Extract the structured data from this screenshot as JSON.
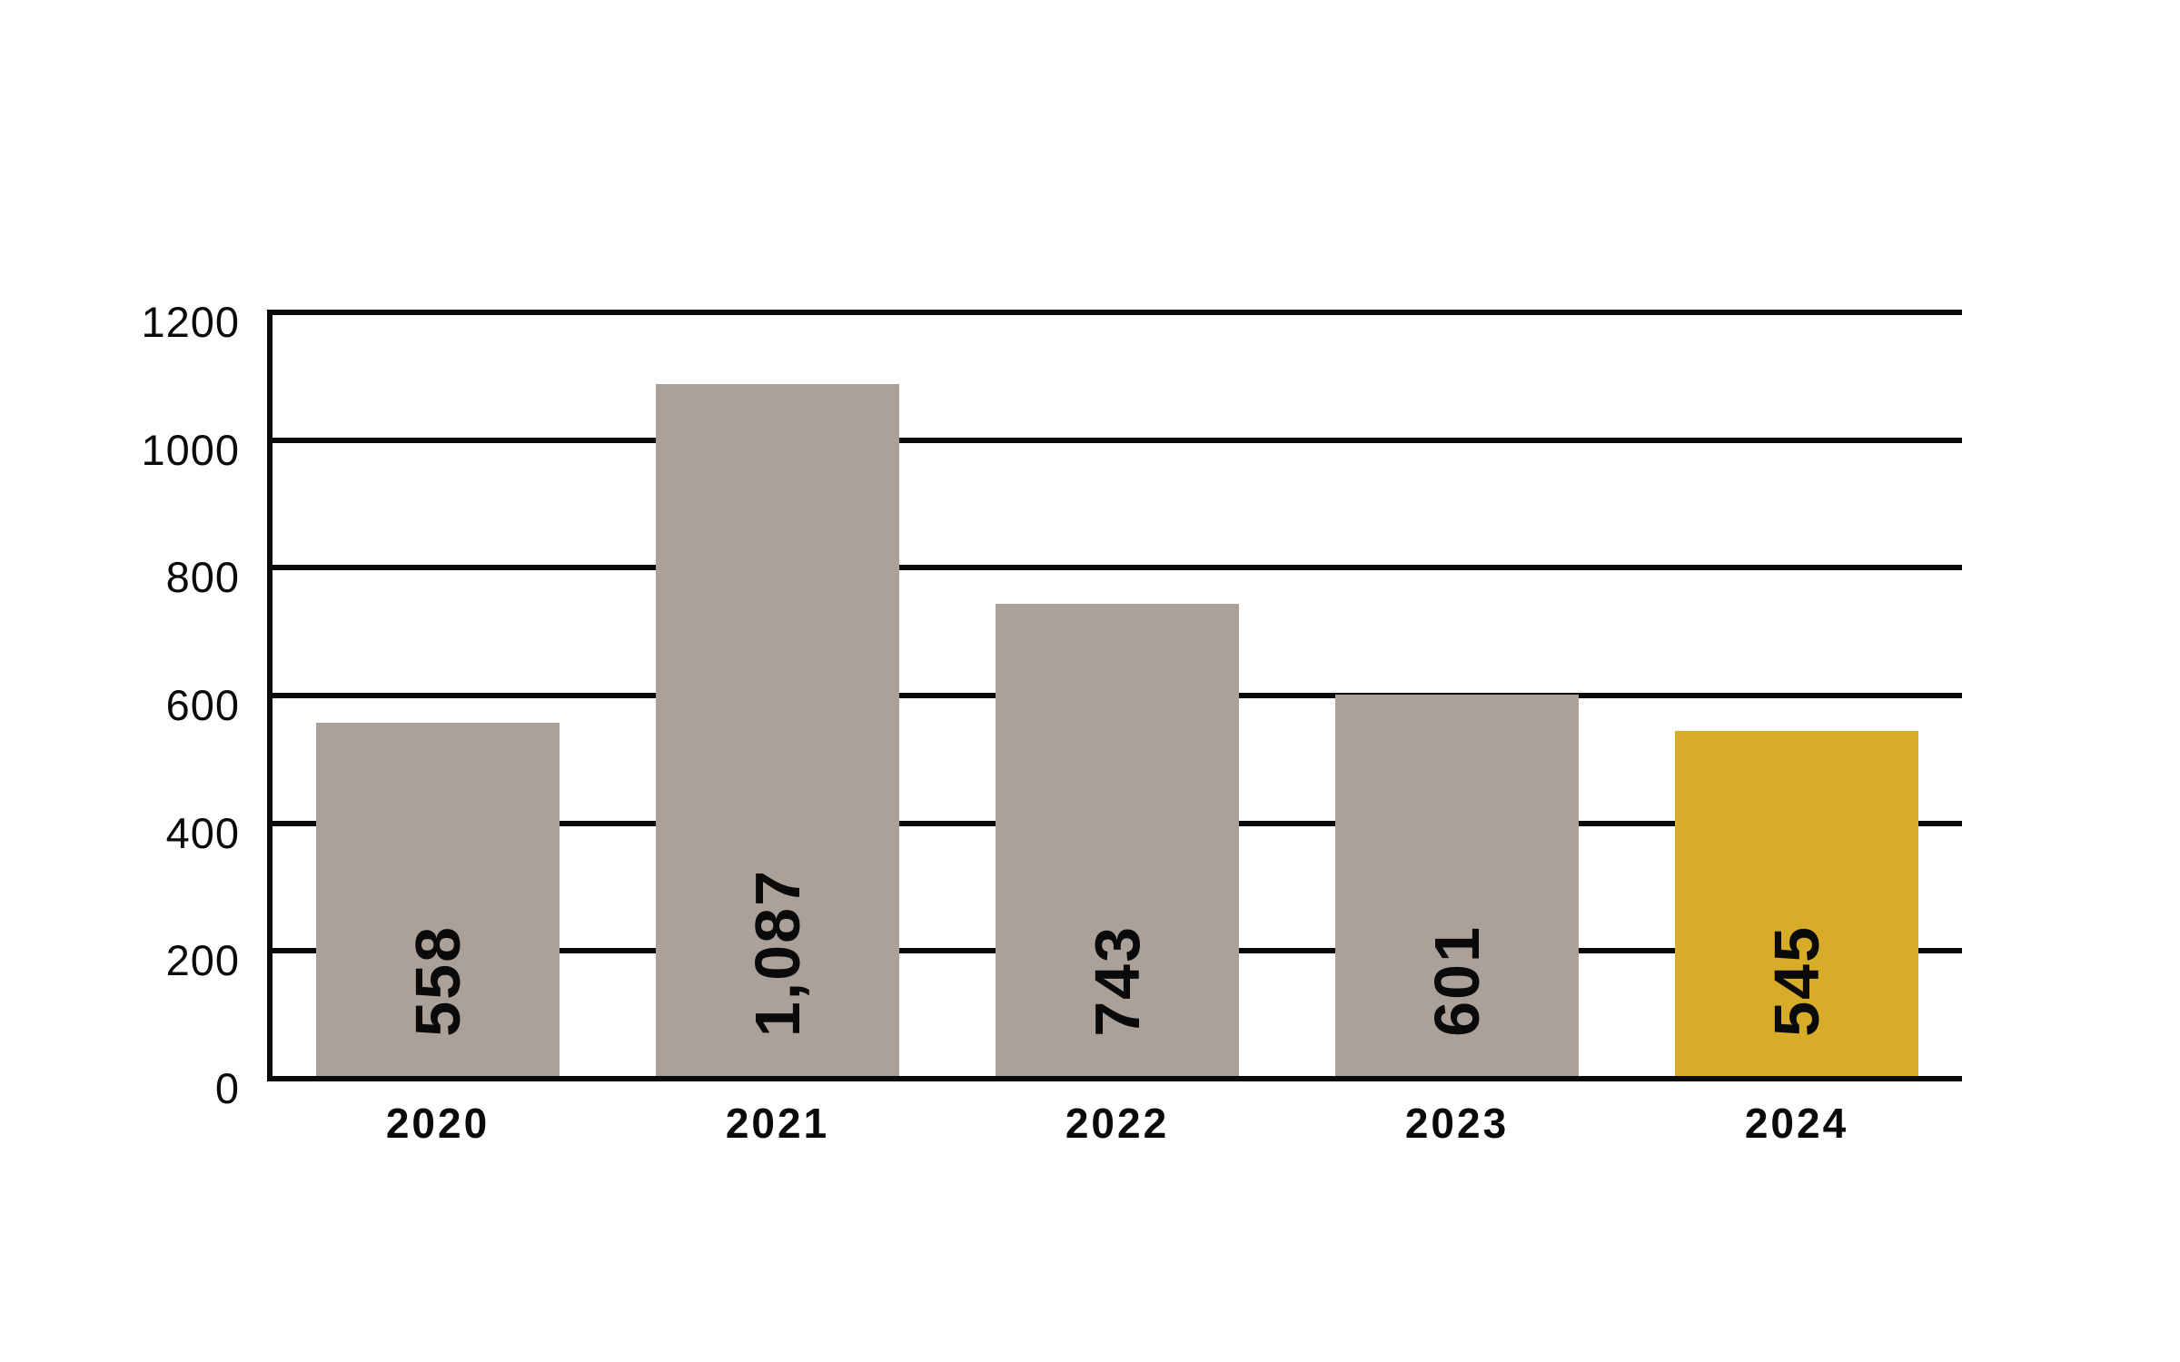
{
  "chart_data": {
    "type": "bar",
    "title": "",
    "categories": [
      "2020",
      "2021",
      "2022",
      "2023",
      "2024"
    ],
    "values": [
      558,
      1087,
      743,
      601,
      545
    ],
    "value_labels": [
      "558",
      "1,087",
      "743",
      "601",
      "545"
    ],
    "highlight_index": 4,
    "y_axis": {
      "min": 0,
      "max": 1200,
      "step": 200,
      "tick_labels": [
        "0",
        "200",
        "400",
        "600",
        "800",
        "1000",
        "1200"
      ]
    },
    "grid": true,
    "legend": false,
    "colors": {
      "bar_default": "#ACA198",
      "bar_highlight": "#D7AC28",
      "grid_line": "#0A0A0A",
      "text": "#0A0A0A",
      "background": "#FFFFFF"
    }
  }
}
